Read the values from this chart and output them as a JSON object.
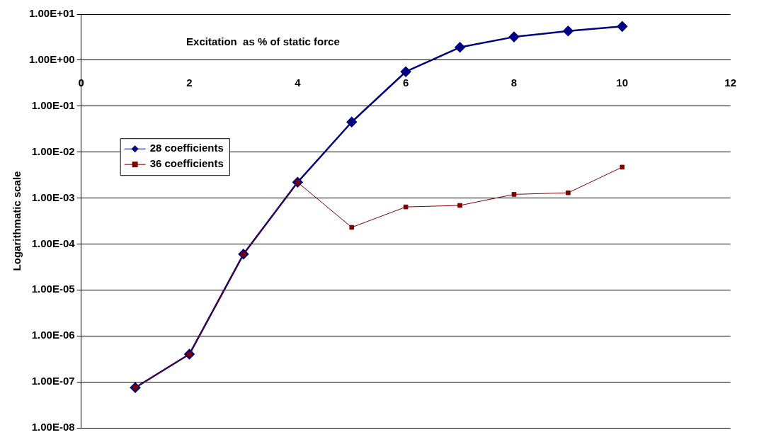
{
  "chart_data": {
    "type": "line",
    "title": "Excitation  as % of static force",
    "ylabel": "Logarithmatic scale",
    "x": [
      1,
      2,
      3,
      4,
      5,
      6,
      7,
      8,
      9,
      10
    ],
    "series": [
      {
        "name": "28 coefficients",
        "color": "#000080",
        "marker": "diamond",
        "values": [
          7.5e-08,
          4e-07,
          6e-05,
          0.0022,
          0.045,
          0.56,
          1.9,
          3.2,
          4.3,
          5.4
        ]
      },
      {
        "name": "36 coefficients",
        "color": "#800000",
        "marker": "square",
        "values": [
          7.5e-08,
          4e-07,
          6e-05,
          0.0022,
          0.00023,
          0.00064,
          0.00069,
          0.0012,
          0.0013,
          0.0047
        ]
      }
    ],
    "log": "y",
    "grid": "y",
    "legend": "left",
    "xlim": [
      0,
      12
    ],
    "xticks": [
      0,
      2,
      4,
      6,
      8,
      10,
      12
    ],
    "ylim": [
      1e-08,
      10
    ],
    "yticks": [
      {
        "value": 1e-08,
        "label": "1.00E-08"
      },
      {
        "value": 1e-07,
        "label": "1.00E-07"
      },
      {
        "value": 1e-06,
        "label": "1.00E-06"
      },
      {
        "value": 1e-05,
        "label": "1.00E-05"
      },
      {
        "value": 0.0001,
        "label": "1.00E-04"
      },
      {
        "value": 0.001,
        "label": "1.00E-03"
      },
      {
        "value": 0.01,
        "label": "1.00E-02"
      },
      {
        "value": 0.1,
        "label": "1.00E-01"
      },
      {
        "value": 1,
        "label": "1.00E+00"
      },
      {
        "value": 10,
        "label": "1.00E+01"
      }
    ]
  }
}
